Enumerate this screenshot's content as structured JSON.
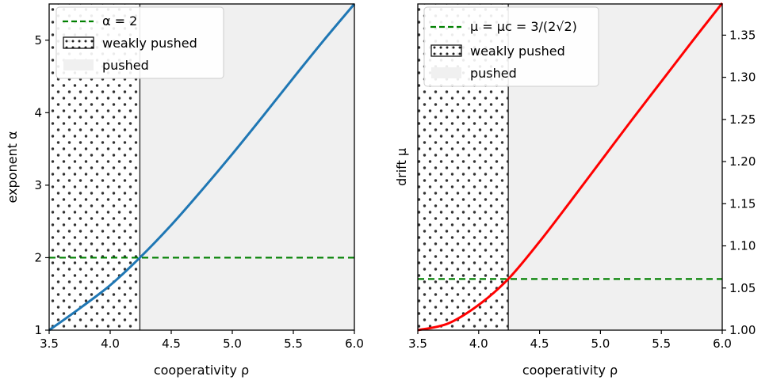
{
  "chart_data": [
    {
      "type": "line",
      "xlabel": "cooperativity ρ",
      "ylabel": "exponent α",
      "xlim": [
        3.5,
        6.0
      ],
      "ylim": [
        1.0,
        5.5
      ],
      "xticks": [
        "3.5",
        "4.0",
        "4.5",
        "5.0",
        "5.5",
        "6.0"
      ],
      "yticks": [
        "1",
        "2",
        "3",
        "4",
        "5"
      ],
      "y_axis_side": "left",
      "grid": false,
      "legend_position": "upper-left",
      "regions": [
        {
          "name": "weakly pushed",
          "x_range": [
            3.5,
            4.243
          ],
          "style": "dotted-hatch"
        },
        {
          "name": "pushed",
          "x_range": [
            4.243,
            6.0
          ],
          "style": "light-gray-fill"
        }
      ],
      "series": [
        {
          "x": [
            3.5,
            3.75,
            4.0,
            4.243,
            4.5,
            4.75,
            5.0,
            5.25,
            5.5,
            5.75,
            6.0
          ],
          "values": [
            1.0,
            1.3,
            1.62,
            2.0,
            2.45,
            2.93,
            3.43,
            3.95,
            4.48,
            5.0,
            5.5
          ],
          "color": "#1f77b4"
        }
      ],
      "reference_line": {
        "y": 2.0,
        "color": "#008000",
        "style": "dashed"
      },
      "legend": [
        "α = 2",
        "weakly pushed",
        "pushed"
      ]
    },
    {
      "type": "line",
      "xlabel": "cooperativity ρ",
      "ylabel": "drift μ",
      "xlim": [
        3.5,
        6.0
      ],
      "ylim": [
        1.0,
        1.387
      ],
      "xticks": [
        "3.5",
        "4.0",
        "4.5",
        "5.0",
        "5.5",
        "6.0"
      ],
      "yticks": [
        "1.00",
        "1.05",
        "1.10",
        "1.15",
        "1.20",
        "1.25",
        "1.30",
        "1.35"
      ],
      "y_axis_side": "right",
      "grid": false,
      "legend_position": "upper-left",
      "regions": [
        {
          "name": "weakly pushed",
          "x_range": [
            3.5,
            4.243
          ],
          "style": "dotted-hatch"
        },
        {
          "name": "pushed",
          "x_range": [
            4.243,
            6.0
          ],
          "style": "light-gray-fill"
        }
      ],
      "series": [
        {
          "x": [
            3.5,
            3.75,
            4.0,
            4.243,
            4.5,
            4.75,
            5.0,
            5.25,
            5.5,
            5.75,
            6.0
          ],
          "values": [
            1.0,
            1.008,
            1.03,
            1.0607,
            1.105,
            1.152,
            1.2,
            1.248,
            1.295,
            1.342,
            1.388
          ],
          "color": "#ff0000"
        }
      ],
      "reference_line": {
        "y": 1.0607,
        "color": "#008000",
        "style": "dashed"
      },
      "legend": [
        "μ = μc = 3/(2√2)",
        "weakly pushed",
        "pushed"
      ]
    }
  ]
}
